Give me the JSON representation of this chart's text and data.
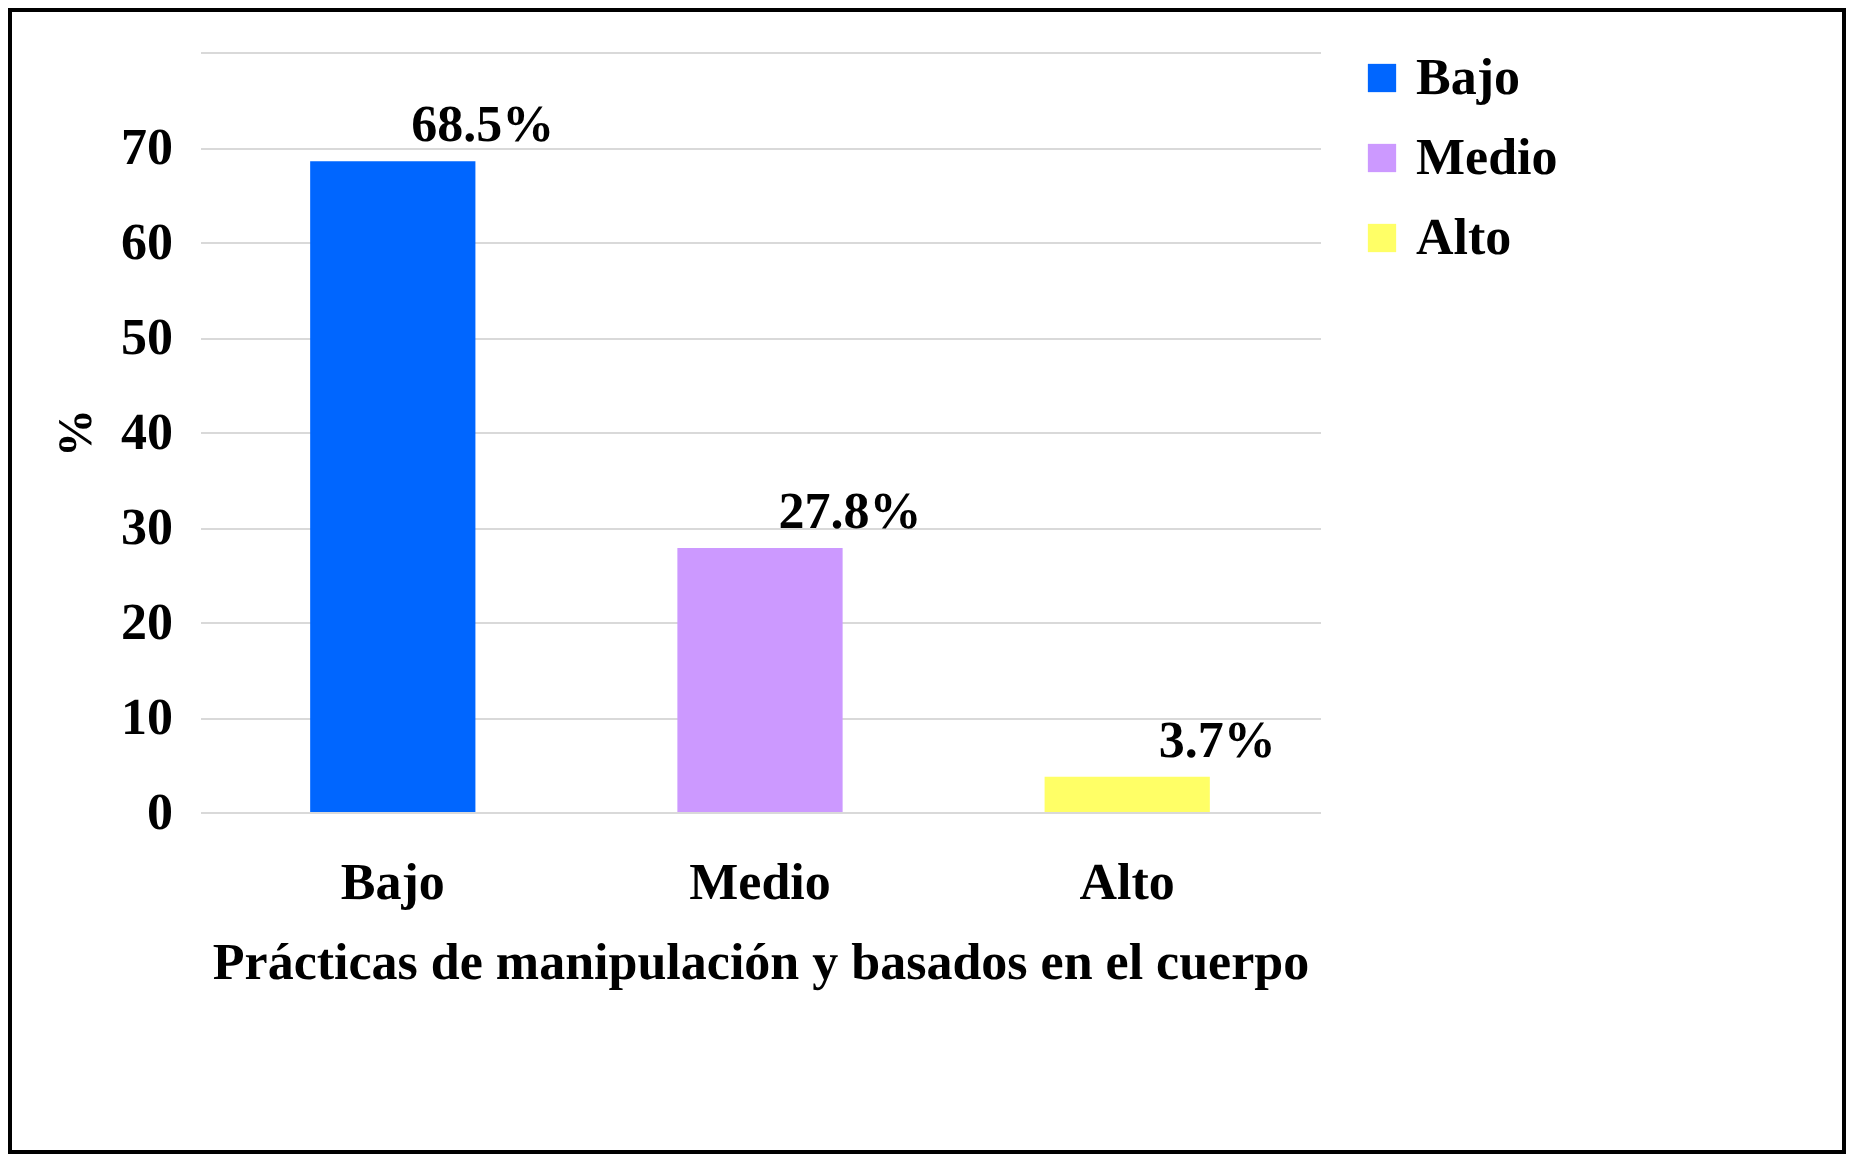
{
  "chart_data": {
    "type": "bar",
    "xlabel": "Prácticas de manipulación y basados en el cuerpo",
    "ylabel": "%",
    "categories": [
      "Bajo",
      "Medio",
      "Alto"
    ],
    "series": [
      {
        "name": "Bajo",
        "color": "#0066ff",
        "values": [
          68.5,
          null,
          null
        ],
        "value_labels": [
          "68.5%",
          null,
          null
        ]
      },
      {
        "name": "Medio",
        "color": "#cc99ff",
        "values": [
          null,
          27.8,
          null
        ],
        "value_labels": [
          null,
          "27.8%",
          null
        ]
      },
      {
        "name": "Alto",
        "color": "#ffff66",
        "values": [
          null,
          null,
          3.7
        ],
        "value_labels": [
          null,
          null,
          "3.7%"
        ]
      }
    ],
    "ylim": [
      0,
      80
    ],
    "yticks": [
      0,
      10,
      20,
      30,
      40,
      50,
      60,
      70,
      {
        "value": 80,
        "label": null
      }
    ],
    "grid": "y",
    "legend": "right"
  }
}
